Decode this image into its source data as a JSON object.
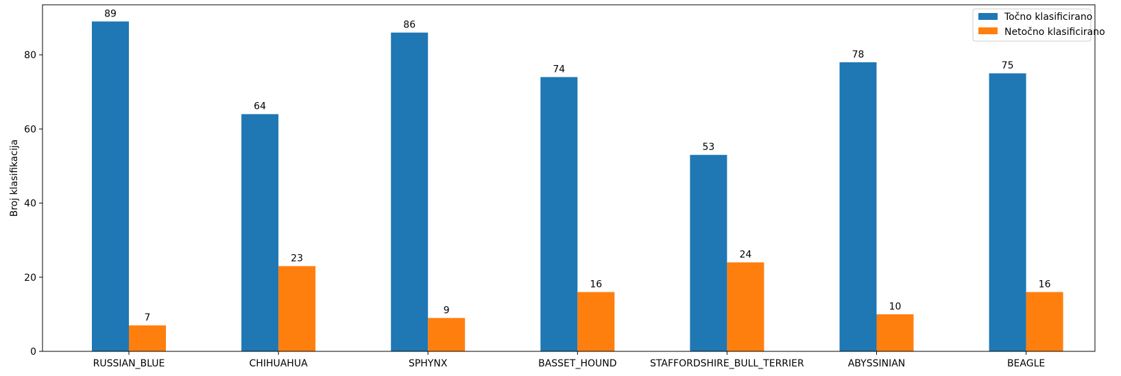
{
  "chart_data": {
    "type": "bar",
    "title": "",
    "xlabel": "",
    "ylabel": "Broj klasifikacija",
    "ylim": [
      0,
      93.5
    ],
    "yticks": [
      0,
      20,
      40,
      60,
      80
    ],
    "categories": [
      "RUSSIAN_BLUE",
      "CHIHUAHUA",
      "SPHYNX",
      "BASSET_HOUND",
      "STAFFORDSHIRE_BULL_TERRIER",
      "ABYSSINIAN",
      "BEAGLE"
    ],
    "series": [
      {
        "name": "Točno klasificirano",
        "color": "#1f77b4",
        "values": [
          89,
          64,
          86,
          74,
          53,
          78,
          75
        ]
      },
      {
        "name": "Netočno klasificirano",
        "color": "#ff7f0e",
        "values": [
          7,
          23,
          9,
          16,
          24,
          10,
          16
        ]
      }
    ],
    "legend_position": "top-right",
    "grid": false
  }
}
